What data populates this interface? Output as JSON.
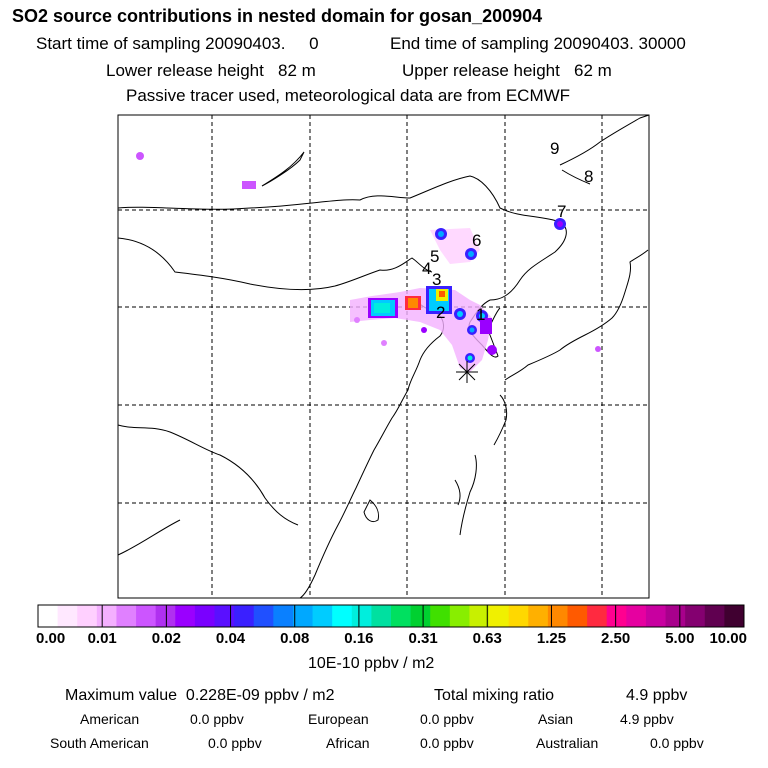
{
  "header": {
    "title": "SO2 source contributions in nested domain for gosan_200904",
    "start_time": "Start time of sampling 20090403.     0",
    "end_time": "End time of sampling 20090403. 30000",
    "lower_height": "Lower release height   82 m",
    "upper_height": "Upper release height   62 m",
    "tracer_note": "Passive tracer used, meteorological data are from ECMWF"
  },
  "map": {
    "labels": [
      "9",
      "8",
      "7",
      "6",
      "5",
      "4",
      "3",
      "2",
      "1"
    ],
    "receptor": "gosan"
  },
  "colorbar": {
    "ticks": [
      "0.00",
      "0.01",
      "0.02",
      "0.04",
      "0.08",
      "0.16",
      "0.31",
      "0.63",
      "1.25",
      "2.50",
      "5.00",
      "10.00"
    ],
    "units": "10E-10 ppbv / m2",
    "colors": [
      "#ffffff",
      "#ffe8ff",
      "#ffd0ff",
      "#f4b0ff",
      "#e080ff",
      "#cc55ff",
      "#b030f0",
      "#9a00ff",
      "#7a00ff",
      "#5a10ff",
      "#3a20ff",
      "#2050ff",
      "#0a80ff",
      "#00a8ff",
      "#00ccff",
      "#00ffff",
      "#00eedd",
      "#00e0a0",
      "#00e060",
      "#00d030",
      "#40e000",
      "#88ee00",
      "#c8f000",
      "#f0f000",
      "#ffd800",
      "#ffb000",
      "#ff8800",
      "#ff5a00",
      "#ff2a40",
      "#ff0090",
      "#e600a0",
      "#c800a0",
      "#a8008c",
      "#840070",
      "#600050",
      "#400030"
    ]
  },
  "footer": {
    "max_value": "Maximum value  0.228E-09 ppbv / m2",
    "total_label": "Total mixing ratio",
    "total_value": "4.9 ppbv",
    "regions": [
      {
        "name": "American",
        "value": "0.0 ppbv"
      },
      {
        "name": "European",
        "value": "0.0 ppbv"
      },
      {
        "name": "Asian",
        "value": "4.9 ppbv"
      },
      {
        "name": "South American",
        "value": "0.0 ppbv"
      },
      {
        "name": "African",
        "value": "0.0 ppbv"
      },
      {
        "name": "Australian",
        "value": "0.0 ppbv"
      }
    ]
  }
}
